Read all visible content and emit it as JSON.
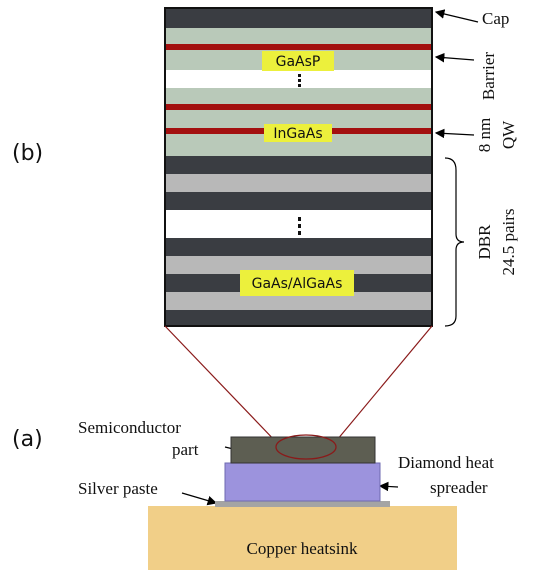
{
  "panels": {
    "b": "(b)",
    "a": "(a)"
  },
  "layer_labels": {
    "cap": "Cap",
    "barrier": "Barrier",
    "qw": [
      "8 nm",
      "QW"
    ],
    "dbr": [
      "DBR",
      "24.5 pairs"
    ]
  },
  "materials": {
    "barrier": "GaAsP",
    "qw": "InGaAs",
    "dbr": "GaAs/AlGaAs"
  },
  "mount": {
    "semiconductor": [
      "Semiconductor",
      "part"
    ],
    "silver": "Silver paste",
    "diamond": [
      "Diamond heat",
      "spreader"
    ],
    "copper": "Copper heatsink"
  }
}
